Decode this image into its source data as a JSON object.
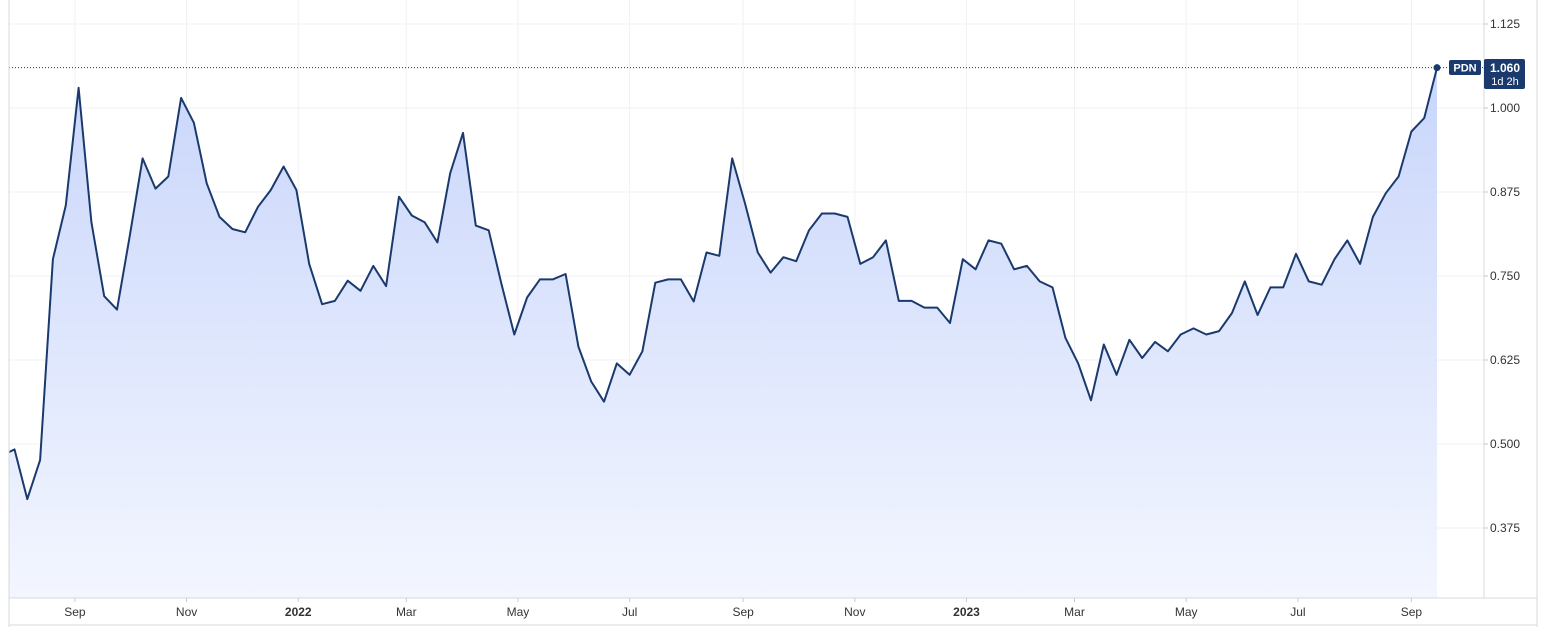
{
  "chart_data": {
    "type": "area",
    "symbol": "PDN",
    "last_price": "1.060",
    "countdown": "1d 2h",
    "y_ticks": [
      "1.125",
      "1.000",
      "0.875",
      "0.750",
      "0.625",
      "0.500",
      "0.375"
    ],
    "ylim": [
      0.29,
      1.14
    ],
    "x_ticks": [
      {
        "label": "Sep",
        "date": "2021-09-01",
        "bold": false
      },
      {
        "label": "Nov",
        "date": "2021-11-01",
        "bold": false
      },
      {
        "label": "2022",
        "date": "2022-01-01",
        "bold": true
      },
      {
        "label": "Mar",
        "date": "2022-03-01",
        "bold": false
      },
      {
        "label": "May",
        "date": "2022-05-01",
        "bold": false
      },
      {
        "label": "Jul",
        "date": "2022-07-01",
        "bold": false
      },
      {
        "label": "Sep",
        "date": "2022-09-01",
        "bold": false
      },
      {
        "label": "Nov",
        "date": "2022-11-01",
        "bold": false
      },
      {
        "label": "2023",
        "date": "2023-01-01",
        "bold": true
      },
      {
        "label": "Mar",
        "date": "2023-03-01",
        "bold": false
      },
      {
        "label": "May",
        "date": "2023-05-01",
        "bold": false
      },
      {
        "label": "Jul",
        "date": "2023-07-01",
        "bold": false
      },
      {
        "label": "Sep",
        "date": "2023-09-01",
        "bold": false
      }
    ],
    "xlim": [
      "2021-07-27",
      "2023-10-15"
    ],
    "series": [
      {
        "color": "#1a3a6e",
        "fill_top": "#c9d6fb",
        "fill_bottom": "#f3f6ff",
        "points": [
          [
            "2021-07-27",
            0.488
          ],
          [
            "2021-07-30",
            0.492
          ],
          [
            "2021-08-06",
            0.418
          ],
          [
            "2021-08-13",
            0.476
          ],
          [
            "2021-08-20",
            0.775
          ],
          [
            "2021-08-27",
            0.855
          ],
          [
            "2021-09-03",
            1.03
          ],
          [
            "2021-09-10",
            0.83
          ],
          [
            "2021-09-17",
            0.72
          ],
          [
            "2021-09-24",
            0.7
          ],
          [
            "2021-10-01",
            0.81
          ],
          [
            "2021-10-08",
            0.925
          ],
          [
            "2021-10-15",
            0.88
          ],
          [
            "2021-10-22",
            0.898
          ],
          [
            "2021-10-29",
            1.015
          ],
          [
            "2021-11-05",
            0.978
          ],
          [
            "2021-11-12",
            0.888
          ],
          [
            "2021-11-19",
            0.838
          ],
          [
            "2021-11-26",
            0.82
          ],
          [
            "2021-12-03",
            0.815
          ],
          [
            "2021-12-10",
            0.853
          ],
          [
            "2021-12-17",
            0.878
          ],
          [
            "2021-12-24",
            0.913
          ],
          [
            "2021-12-31",
            0.878
          ],
          [
            "2022-01-07",
            0.768
          ],
          [
            "2022-01-14",
            0.708
          ],
          [
            "2022-01-21",
            0.713
          ],
          [
            "2022-01-28",
            0.743
          ],
          [
            "2022-02-04",
            0.728
          ],
          [
            "2022-02-11",
            0.765
          ],
          [
            "2022-02-18",
            0.735
          ],
          [
            "2022-02-25",
            0.868
          ],
          [
            "2022-03-04",
            0.84
          ],
          [
            "2022-03-11",
            0.83
          ],
          [
            "2022-03-18",
            0.8
          ],
          [
            "2022-03-25",
            0.903
          ],
          [
            "2022-04-01",
            0.963
          ],
          [
            "2022-04-08",
            0.825
          ],
          [
            "2022-04-15",
            0.818
          ],
          [
            "2022-04-22",
            0.738
          ],
          [
            "2022-04-29",
            0.663
          ],
          [
            "2022-05-06",
            0.718
          ],
          [
            "2022-05-13",
            0.745
          ],
          [
            "2022-05-20",
            0.745
          ],
          [
            "2022-05-27",
            0.753
          ],
          [
            "2022-06-03",
            0.645
          ],
          [
            "2022-06-10",
            0.593
          ],
          [
            "2022-06-17",
            0.563
          ],
          [
            "2022-06-24",
            0.62
          ],
          [
            "2022-07-01",
            0.603
          ],
          [
            "2022-07-08",
            0.638
          ],
          [
            "2022-07-15",
            0.74
          ],
          [
            "2022-07-22",
            0.745
          ],
          [
            "2022-07-29",
            0.745
          ],
          [
            "2022-08-05",
            0.712
          ],
          [
            "2022-08-12",
            0.785
          ],
          [
            "2022-08-19",
            0.78
          ],
          [
            "2022-08-26",
            0.925
          ],
          [
            "2022-09-02",
            0.858
          ],
          [
            "2022-09-09",
            0.785
          ],
          [
            "2022-09-16",
            0.755
          ],
          [
            "2022-09-23",
            0.778
          ],
          [
            "2022-09-30",
            0.772
          ],
          [
            "2022-10-07",
            0.818
          ],
          [
            "2022-10-14",
            0.843
          ],
          [
            "2022-10-21",
            0.843
          ],
          [
            "2022-10-28",
            0.838
          ],
          [
            "2022-11-04",
            0.768
          ],
          [
            "2022-11-11",
            0.778
          ],
          [
            "2022-11-18",
            0.803
          ],
          [
            "2022-11-25",
            0.713
          ],
          [
            "2022-12-02",
            0.713
          ],
          [
            "2022-12-09",
            0.703
          ],
          [
            "2022-12-16",
            0.703
          ],
          [
            "2022-12-23",
            0.68
          ],
          [
            "2022-12-30",
            0.775
          ],
          [
            "2023-01-06",
            0.76
          ],
          [
            "2023-01-13",
            0.803
          ],
          [
            "2023-01-20",
            0.798
          ],
          [
            "2023-01-27",
            0.76
          ],
          [
            "2023-02-03",
            0.765
          ],
          [
            "2023-02-10",
            0.742
          ],
          [
            "2023-02-17",
            0.733
          ],
          [
            "2023-02-24",
            0.658
          ],
          [
            "2023-03-03",
            0.62
          ],
          [
            "2023-03-10",
            0.565
          ],
          [
            "2023-03-17",
            0.648
          ],
          [
            "2023-03-24",
            0.603
          ],
          [
            "2023-03-31",
            0.655
          ],
          [
            "2023-04-07",
            0.628
          ],
          [
            "2023-04-14",
            0.652
          ],
          [
            "2023-04-21",
            0.638
          ],
          [
            "2023-04-28",
            0.663
          ],
          [
            "2023-05-05",
            0.672
          ],
          [
            "2023-05-12",
            0.663
          ],
          [
            "2023-05-19",
            0.668
          ],
          [
            "2023-05-26",
            0.695
          ],
          [
            "2023-06-02",
            0.742
          ],
          [
            "2023-06-09",
            0.692
          ],
          [
            "2023-06-16",
            0.733
          ],
          [
            "2023-06-23",
            0.733
          ],
          [
            "2023-06-30",
            0.783
          ],
          [
            "2023-07-07",
            0.742
          ],
          [
            "2023-07-14",
            0.737
          ],
          [
            "2023-07-21",
            0.775
          ],
          [
            "2023-07-28",
            0.803
          ],
          [
            "2023-08-04",
            0.768
          ],
          [
            "2023-08-11",
            0.838
          ],
          [
            "2023-08-18",
            0.873
          ],
          [
            "2023-08-25",
            0.898
          ],
          [
            "2023-09-01",
            0.965
          ],
          [
            "2023-09-08",
            0.985
          ],
          [
            "2023-09-15",
            1.06
          ]
        ]
      }
    ]
  }
}
